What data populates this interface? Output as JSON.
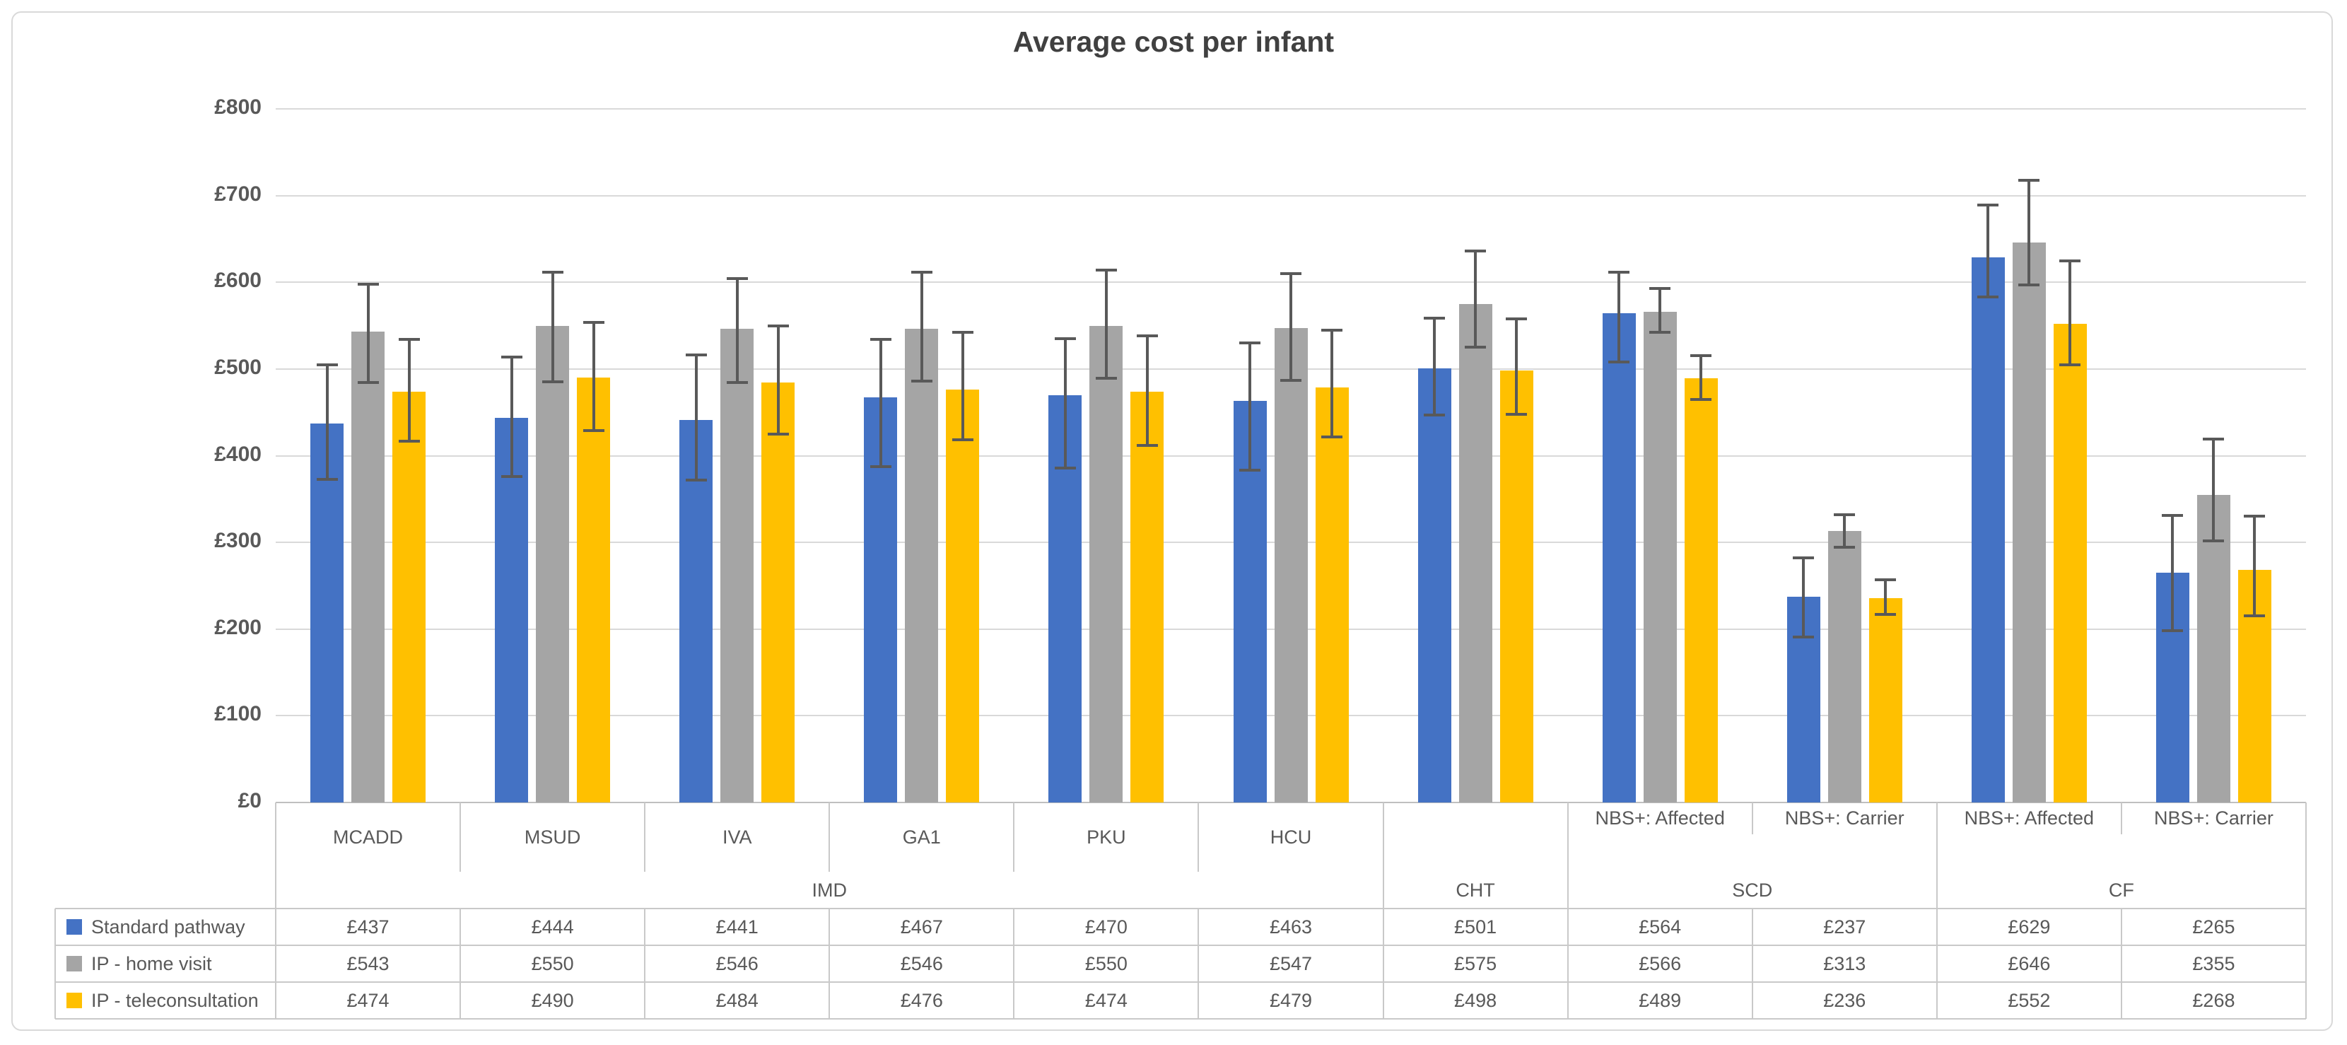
{
  "chart_data": {
    "type": "bar",
    "title": "Average cost per infant",
    "currency_prefix": "£",
    "ylim": [
      0,
      800
    ],
    "ytick_step": 100,
    "ytick_labels": [
      "£0",
      "£100",
      "£200",
      "£300",
      "£400",
      "£500",
      "£600",
      "£700",
      "£800"
    ],
    "grid": true,
    "legend_position": "table-row-headers-left",
    "categories": [
      "MCADD",
      "MSUD",
      "IVA",
      "GA1",
      "PKU",
      "HCU",
      "",
      "NBS+: Affected",
      "NBS+: Carrier",
      "NBS+: Affected",
      "NBS+: Carrier"
    ],
    "category_groups": [
      {
        "label": "IMD",
        "span": 6
      },
      {
        "label": "CHT",
        "span": 1
      },
      {
        "label": "SCD",
        "span": 2
      },
      {
        "label": "CF",
        "span": 2
      }
    ],
    "series": [
      {
        "name": "Standard pathway",
        "color": "#4472C4",
        "values": [
          437,
          444,
          441,
          467,
          470,
          463,
          501,
          564,
          237,
          629,
          265
        ],
        "err_plus": [
          68,
          70,
          75,
          67,
          65,
          67,
          58,
          48,
          45,
          60,
          66
        ],
        "err_minus": [
          64,
          68,
          69,
          80,
          84,
          80,
          54,
          56,
          46,
          46,
          67
        ]
      },
      {
        "name": "IP - home visit",
        "color": "#A5A5A5",
        "values": [
          543,
          550,
          546,
          546,
          550,
          547,
          575,
          566,
          313,
          646,
          355
        ],
        "err_plus": [
          55,
          62,
          58,
          66,
          64,
          63,
          61,
          27,
          19,
          72,
          64
        ],
        "err_minus": [
          59,
          65,
          62,
          60,
          61,
          60,
          50,
          24,
          19,
          49,
          53
        ]
      },
      {
        "name": "IP - teleconsultation",
        "color": "#FFC000",
        "values": [
          474,
          490,
          484,
          476,
          474,
          479,
          498,
          489,
          236,
          552,
          268
        ],
        "err_plus": [
          60,
          64,
          66,
          66,
          64,
          66,
          60,
          26,
          21,
          73,
          62
        ],
        "err_minus": [
          57,
          61,
          59,
          58,
          62,
          57,
          50,
          24,
          19,
          47,
          53
        ]
      }
    ],
    "gridline_color": "#D9D9D9",
    "axis_line_color": "#BFBFBF",
    "table_line_color": "#C9C9C9",
    "error_bar_color": "#595959",
    "text_color": "#595959",
    "title_color": "#404040"
  }
}
